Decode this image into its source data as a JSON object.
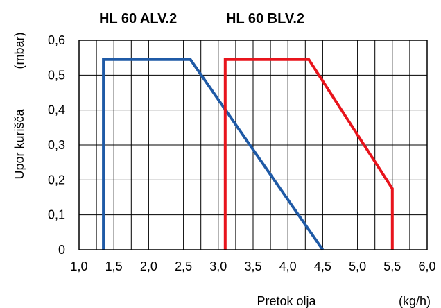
{
  "chart_data": {
    "type": "line",
    "series_titles": [
      "HL 60 ALV.2",
      "HL 60 BLV.2"
    ],
    "xlabel": "Pretok olja",
    "xunit": "(kg/h)",
    "ylabel": "Upor kurišča",
    "yunit": "(mbar)",
    "xlim": [
      1.0,
      6.0
    ],
    "ylim": [
      0,
      0.6
    ],
    "x_ticks": [
      "1,0",
      "1,5",
      "2,0",
      "2,5",
      "3,0",
      "3,5",
      "4,0",
      "4,5",
      "5,0",
      "5,5",
      "6,0"
    ],
    "y_ticks": [
      "0",
      "0,1",
      "0,2",
      "0,3",
      "0,4",
      "0,5",
      "0,6"
    ],
    "grid": true,
    "series": [
      {
        "name": "HL 60 ALV.2",
        "color": "#1f5aa6",
        "x": [
          1.35,
          1.35,
          2.6,
          4.5
        ],
        "y": [
          0,
          0.545,
          0.545,
          0
        ]
      },
      {
        "name": "HL 60 BLV.2",
        "color": "#e8141c",
        "x": [
          3.1,
          3.1,
          4.3,
          5.5,
          5.5
        ],
        "y": [
          0,
          0.545,
          0.545,
          0.175,
          0
        ]
      }
    ]
  }
}
